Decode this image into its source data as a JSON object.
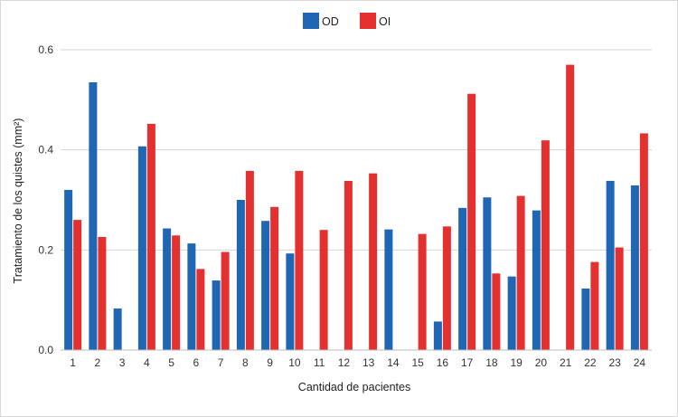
{
  "chart_data": {
    "type": "bar",
    "title": "",
    "xlabel": "Cantidad de pacientes",
    "ylabel": "Tratamiento de los quistes (mm²)",
    "ylim": [
      0,
      0.6
    ],
    "yticks": [
      "0.0",
      "0.2",
      "0.4",
      "0.6"
    ],
    "grid": true,
    "legend_position": "top-center",
    "categories": [
      "1",
      "2",
      "3",
      "4",
      "5",
      "6",
      "7",
      "8",
      "9",
      "10",
      "11",
      "12",
      "13",
      "14",
      "15",
      "16",
      "17",
      "18",
      "19",
      "20",
      "21",
      "22",
      "23",
      "24"
    ],
    "series": [
      {
        "name": "OD",
        "color": "#1f66b5",
        "values": [
          0.32,
          0.535,
          0.083,
          0.407,
          0.243,
          0.213,
          0.139,
          0.3,
          0.258,
          0.193,
          0,
          0,
          0,
          0.241,
          0,
          0.057,
          0.284,
          0.305,
          0.147,
          0.279,
          0,
          0.123,
          0.338,
          0.329
        ]
      },
      {
        "name": "OI",
        "color": "#e53030",
        "values": [
          0.26,
          0.226,
          0,
          0.452,
          0.229,
          0.162,
          0.196,
          0.358,
          0.286,
          0.358,
          0.24,
          0.338,
          0.353,
          0,
          0.232,
          0.247,
          0.512,
          0.153,
          0.308,
          0.419,
          0.57,
          0.176,
          0.205,
          0.433
        ]
      }
    ]
  }
}
